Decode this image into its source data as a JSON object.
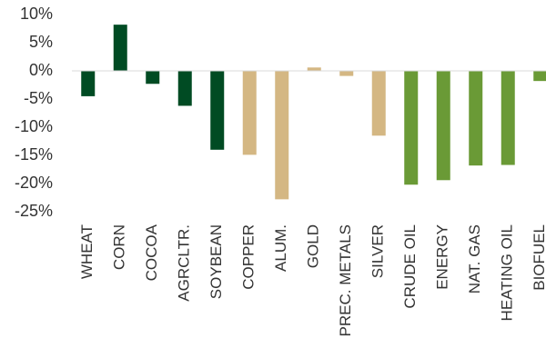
{
  "chart_data": {
    "type": "bar",
    "categories": [
      "WHEAT",
      "CORN",
      "COCOA",
      "AGRCLTR.",
      "SOYBEAN",
      "COPPER",
      "ALUM.",
      "GOLD",
      "PREC. METALS",
      "SILVER",
      "CRUDE OIL",
      "ENERGY",
      "NAT. GAS",
      "HEATING OIL",
      "BIOFUEL"
    ],
    "values": [
      -4.5,
      8.2,
      -2.3,
      -6.2,
      -14.0,
      -14.9,
      -22.8,
      0.6,
      -0.9,
      -11.5,
      -20.2,
      -19.4,
      -16.8,
      -16.7,
      -1.8
    ],
    "colors": [
      "#004b23",
      "#004b23",
      "#004b23",
      "#004b23",
      "#004b23",
      "#d4b783",
      "#d4b783",
      "#d4b783",
      "#d4b783",
      "#d4b783",
      "#6a9a36",
      "#6a9a36",
      "#6a9a36",
      "#6a9a36",
      "#6a9a36"
    ],
    "ylim": [
      -25,
      10
    ],
    "yticks": [
      10,
      5,
      0,
      -5,
      -10,
      -15,
      -20,
      -25
    ],
    "ytick_labels": [
      "10%",
      "5%",
      "0%",
      "-5%",
      "-10%",
      "-15%",
      "-20%",
      "-25%"
    ],
    "title": "",
    "xlabel": "",
    "ylabel": "",
    "grid": false,
    "legend": "none"
  }
}
